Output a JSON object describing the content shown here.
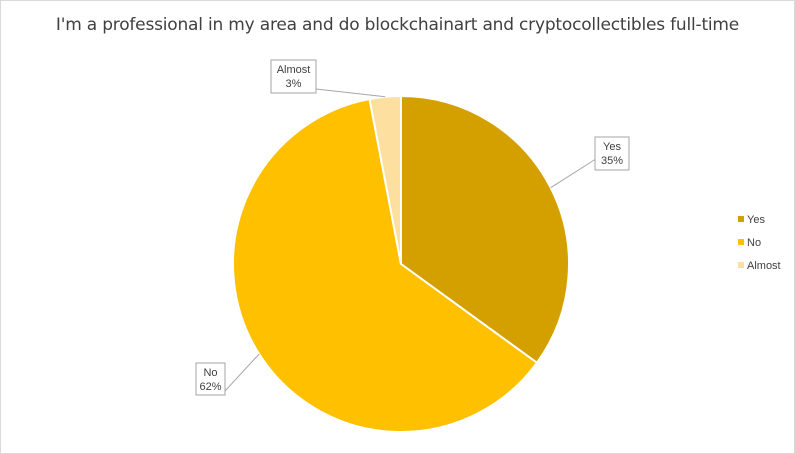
{
  "chart_data": {
    "type": "pie",
    "title": "I'm a professional in my area and do blockchainart and cryptocollectibles full-time",
    "slices": [
      {
        "label": "Yes",
        "value": 35,
        "display": "35%",
        "color": "#d4a000"
      },
      {
        "label": "No",
        "value": 62,
        "display": "62%",
        "color": "#ffc000"
      },
      {
        "label": "Almost",
        "value": 3,
        "display": "3%",
        "color": "#fddfa0"
      }
    ],
    "legend_position": "right",
    "start_angle_deg": 0,
    "direction": "clockwise"
  }
}
